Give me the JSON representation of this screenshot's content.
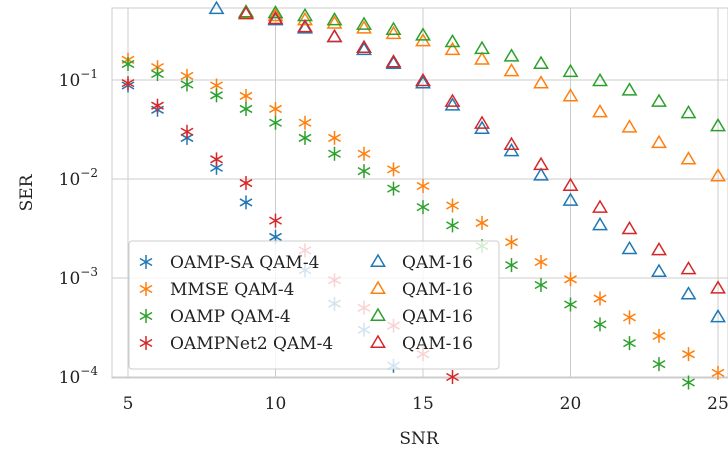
{
  "chart_data": {
    "type": "scatter",
    "xlabel": "SNR",
    "ylabel": "SER",
    "xlim": [
      4.5,
      25.2
    ],
    "ylim": [
      7e-05,
      0.6
    ],
    "yscale": "log",
    "grid": true,
    "legend_position": "lower-left",
    "legend_columns": 2,
    "x_ticks": [
      {
        "value": 5,
        "label": "5"
      },
      {
        "value": 10,
        "label": "10"
      },
      {
        "value": 15,
        "label": "15"
      },
      {
        "value": 20,
        "label": "20"
      },
      {
        "value": 25,
        "label": "25"
      }
    ],
    "y_ticks": [
      {
        "value": 0.1,
        "base": "10",
        "exp": "−1"
      },
      {
        "value": 0.01,
        "base": "10",
        "exp": "−2"
      },
      {
        "value": 0.001,
        "base": "10",
        "exp": "−3"
      },
      {
        "value": 0.0001,
        "base": "10",
        "exp": "−4"
      }
    ],
    "series": [
      {
        "name": "OAMP-SA QAM-4",
        "marker": "asterisk",
        "color": "#1f77b4",
        "x": [
          5,
          6,
          7,
          8,
          9,
          10,
          11,
          12,
          13,
          14
        ],
        "y": [
          0.088,
          0.05,
          0.026,
          0.013,
          0.0058,
          0.0026,
          0.0012,
          0.00055,
          0.0003,
          0.00013
        ]
      },
      {
        "name": "MMSE QAM-4",
        "marker": "asterisk",
        "color": "#ff7f0e",
        "x": [
          5,
          6,
          7,
          8,
          9,
          10,
          11,
          12,
          13,
          14,
          15,
          16,
          17,
          18,
          19,
          20,
          21,
          22,
          23,
          24,
          25
        ],
        "y": [
          0.16,
          0.135,
          0.11,
          0.088,
          0.069,
          0.051,
          0.037,
          0.026,
          0.018,
          0.0125,
          0.0085,
          0.0054,
          0.0036,
          0.0023,
          0.00145,
          0.00097,
          0.00062,
          0.0004,
          0.00026,
          0.00017,
          0.00011
        ]
      },
      {
        "name": "OAMP QAM-4",
        "marker": "asterisk",
        "color": "#2ca02c",
        "x": [
          5,
          6,
          7,
          8,
          9,
          10,
          11,
          12,
          13,
          14,
          15,
          16,
          17,
          18,
          19,
          20,
          21,
          22,
          23,
          24
        ],
        "y": [
          0.145,
          0.115,
          0.09,
          0.07,
          0.051,
          0.037,
          0.026,
          0.018,
          0.012,
          0.008,
          0.0052,
          0.0034,
          0.0021,
          0.00135,
          0.00085,
          0.00054,
          0.00034,
          0.00022,
          0.000135,
          8.8e-05
        ]
      },
      {
        "name": "OAMPNet2 QAM-4",
        "marker": "asterisk",
        "color": "#d62728",
        "x": [
          5,
          6,
          7,
          8,
          9,
          10,
          11,
          12,
          13,
          14,
          15,
          16
        ],
        "y": [
          0.093,
          0.055,
          0.03,
          0.0158,
          0.0091,
          0.0038,
          0.0019,
          0.00095,
          0.0005,
          0.00033,
          0.00017,
          0.0001
        ]
      },
      {
        "name": "QAM-16",
        "marker": "triangle",
        "color": "#1f77b4",
        "x": [
          8,
          9,
          10,
          11,
          12,
          13,
          14,
          15,
          16,
          17,
          18,
          19,
          20,
          21,
          22,
          23,
          24,
          25
        ],
        "y": [
          0.52,
          0.47,
          0.4,
          0.33,
          0.27,
          0.2,
          0.145,
          0.092,
          0.055,
          0.032,
          0.019,
          0.0108,
          0.006,
          0.0034,
          0.00195,
          0.00115,
          0.00068,
          0.0004
        ]
      },
      {
        "name": "QAM-16",
        "marker": "triangle",
        "color": "#ff7f0e",
        "x": [
          9,
          10,
          11,
          12,
          13,
          14,
          15,
          16,
          17,
          18,
          19,
          20,
          21,
          22,
          23,
          24,
          25
        ],
        "y": [
          0.47,
          0.44,
          0.4,
          0.37,
          0.33,
          0.29,
          0.245,
          0.2,
          0.16,
          0.122,
          0.092,
          0.068,
          0.047,
          0.033,
          0.023,
          0.0157,
          0.0106
        ]
      },
      {
        "name": "QAM-16",
        "marker": "triangle",
        "color": "#2ca02c",
        "x": [
          9,
          10,
          11,
          12,
          13,
          14,
          15,
          16,
          17,
          18,
          19,
          20,
          21,
          22,
          23,
          24,
          25
        ],
        "y": [
          0.48,
          0.47,
          0.44,
          0.4,
          0.36,
          0.32,
          0.28,
          0.24,
          0.205,
          0.172,
          0.145,
          0.12,
          0.097,
          0.078,
          0.06,
          0.046,
          0.034
        ]
      },
      {
        "name": "QAM-16",
        "marker": "triangle",
        "color": "#d62728",
        "x": [
          9,
          10,
          11,
          12,
          13,
          14,
          15,
          16,
          17,
          18,
          19,
          20,
          21,
          22,
          23,
          24,
          25
        ],
        "y": [
          0.46,
          0.41,
          0.34,
          0.27,
          0.21,
          0.15,
          0.097,
          0.06,
          0.036,
          0.022,
          0.0138,
          0.0085,
          0.0051,
          0.0031,
          0.0019,
          0.00122,
          0.00078
        ]
      }
    ]
  }
}
